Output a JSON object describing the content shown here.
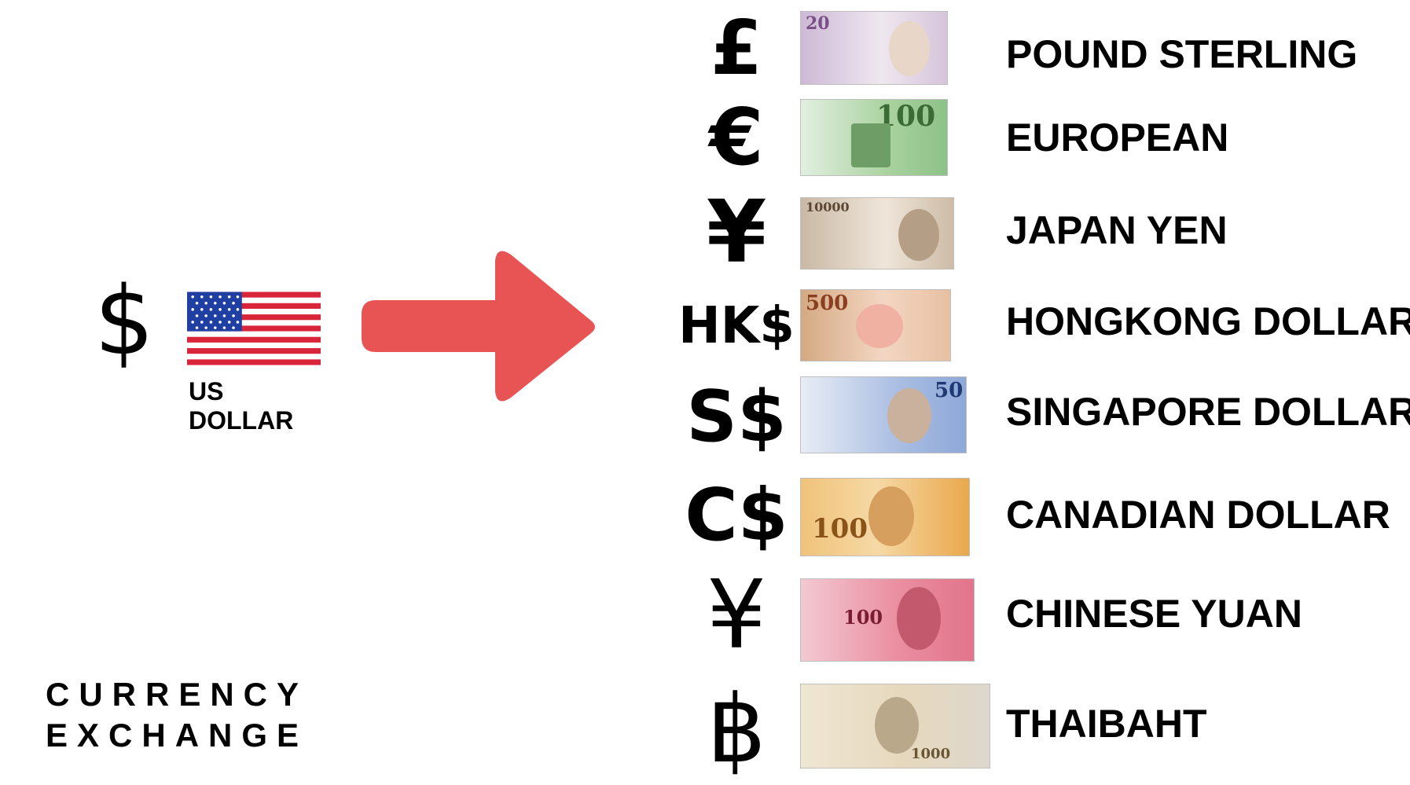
{
  "source": {
    "symbol": "$",
    "label": "US DOLLAR"
  },
  "brand": {
    "line1": "CURRENCY",
    "line2": "EXCHANGE"
  },
  "colors": {
    "arrow": "#e85454",
    "flag_red": "#d9253a",
    "flag_blue": "#1f3fa3"
  },
  "currencies": [
    {
      "symbol": "£",
      "name": "POUND STERLING",
      "note_denomination": "20",
      "note_color": "#d9c8dc"
    },
    {
      "symbol": "€",
      "name": "EUROPEAN",
      "note_denomination": "100",
      "note_color": "#cfe3c9"
    },
    {
      "symbol": "¥",
      "name": "JAPAN YEN",
      "note_denomination": "10000",
      "note_color": "#dccbb7"
    },
    {
      "symbol": "HK$",
      "name": "HONGKONG DOLLAR",
      "note_denomination": "500",
      "note_color": "#e9c3a6"
    },
    {
      "symbol": "S$",
      "name": "SINGAPORE DOLLAR",
      "note_denomination": "50",
      "note_color": "#b9c9e6"
    },
    {
      "symbol": "C$",
      "name": "CANADIAN DOLLAR",
      "note_denomination": "100",
      "note_color": "#efb35f"
    },
    {
      "symbol": "¥",
      "name": "CHINESE YUAN",
      "note_denomination": "100",
      "note_color": "#e87d93"
    },
    {
      "symbol": "฿",
      "name": "THAIBAHT",
      "note_denomination": "1000",
      "note_color": "#e7dcc6"
    }
  ]
}
